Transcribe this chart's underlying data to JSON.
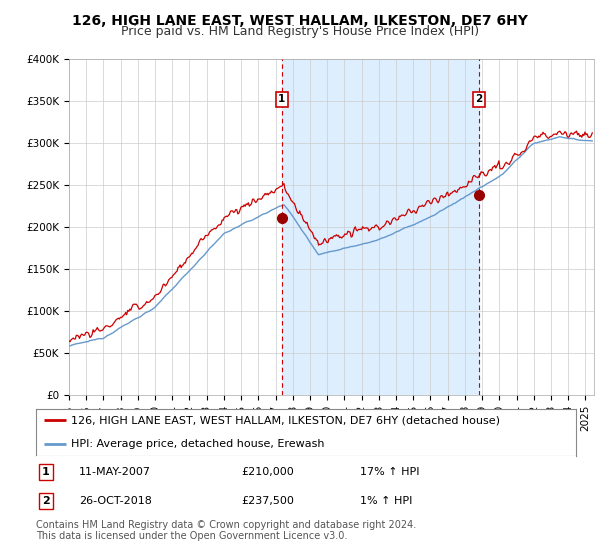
{
  "title": "126, HIGH LANE EAST, WEST HALLAM, ILKESTON, DE7 6HY",
  "subtitle": "Price paid vs. HM Land Registry's House Price Index (HPI)",
  "ylim": [
    0,
    400000
  ],
  "yticks": [
    0,
    50000,
    100000,
    150000,
    200000,
    250000,
    300000,
    350000,
    400000
  ],
  "ytick_labels": [
    "£0",
    "£50K",
    "£100K",
    "£150K",
    "£200K",
    "£250K",
    "£300K",
    "£350K",
    "£400K"
  ],
  "xlim_start": 1995.0,
  "xlim_end": 2025.5,
  "hpi_color": "#6699cc",
  "hpi_fill_color": "#ddeeff",
  "price_color": "#cc0000",
  "sale1_year": 2007.37,
  "sale1_price": 210000,
  "sale2_year": 2018.82,
  "sale2_price": 237500,
  "legend_line1": "126, HIGH LANE EAST, WEST HALLAM, ILKESTON, DE7 6HY (detached house)",
  "legend_line2": "HPI: Average price, detached house, Erewash",
  "table_row1": [
    "1",
    "11-MAY-2007",
    "£210,000",
    "17% ↑ HPI"
  ],
  "table_row2": [
    "2",
    "26-OCT-2018",
    "£237,500",
    "1% ↑ HPI"
  ],
  "footnote": "Contains HM Land Registry data © Crown copyright and database right 2024.\nThis data is licensed under the Open Government Licence v3.0.",
  "background_color": "#ffffff",
  "grid_color": "#cccccc",
  "title_fontsize": 10,
  "subtitle_fontsize": 9,
  "tick_fontsize": 7.5,
  "legend_fontsize": 8,
  "table_fontsize": 8,
  "footnote_fontsize": 7
}
